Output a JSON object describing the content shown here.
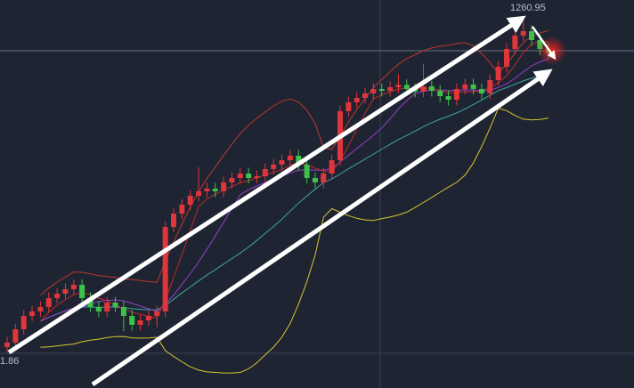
{
  "chart_data": {
    "type": "candlestick",
    "annotations": [
      "1260.95",
      "1.86"
    ],
    "ylim": [
      1206.62,
      1263.3
    ],
    "up_color": "#e0353a",
    "down_color": "#3cc24a",
    "open": [
      1212.6,
      1213.25,
      1215.2,
      1217.15,
      1217.8,
      1218.45,
      1219.75,
      1220.4,
      1221.05,
      1221.7,
      1219.75,
      1218.45,
      1217.8,
      1219.1,
      1218.45,
      1217.15,
      1215.85,
      1216.5,
      1217.15,
      1217.8,
      1230.15,
      1232.1,
      1233.4,
      1234.7,
      1235.35,
      1235.74,
      1235.35,
      1236.65,
      1237.3,
      1237.95,
      1237.3,
      1237.56,
      1238.6,
      1239.25,
      1239.9,
      1240.55,
      1239.25,
      1237.3,
      1236.65,
      1237.95,
      1239.9,
      1247.05,
      1248.35,
      1249.0,
      1249.65,
      1250.3,
      1250.04,
      1250.56,
      1250.9,
      1250.3,
      1249.91,
      1250.69,
      1250.04,
      1249.26,
      1248.74,
      1250.3,
      1250.95,
      1250.3,
      1249.65,
      1251.6,
      1253.55,
      1256.15,
      1258.1,
      1258.75,
      1257.45,
      1256.15
    ],
    "high": [
      1214.1,
      1216.0,
      1218.0,
      1218.6,
      1219.3,
      1220.6,
      1221.2,
      1221.9,
      1222.5,
      1222.5,
      1220.6,
      1219.3,
      1219.9,
      1219.9,
      1219.3,
      1218.0,
      1217.3,
      1218.0,
      1218.6,
      1231.0,
      1232.9,
      1234.2,
      1235.5,
      1238.9,
      1236.6,
      1236.6,
      1237.5,
      1238.1,
      1238.8,
      1238.8,
      1238.4,
      1239.4,
      1240.1,
      1240.7,
      1241.4,
      1241.4,
      1240.1,
      1238.1,
      1238.8,
      1240.7,
      1247.9,
      1249.2,
      1249.8,
      1250.5,
      1251.1,
      1251.1,
      1251.4,
      1252.5,
      1251.7,
      1251.1,
      1254.0,
      1251.5,
      1250.9,
      1250.1,
      1251.1,
      1251.8,
      1251.8,
      1251.1,
      1252.4,
      1254.4,
      1257.0,
      1258.9,
      1260.95,
      1259.6,
      1258.3,
      1257.0
    ],
    "low": [
      1211.86,
      1212.5,
      1214.4,
      1216.4,
      1217.0,
      1217.7,
      1219.0,
      1219.6,
      1220.3,
      1219.0,
      1217.7,
      1217.0,
      1217.0,
      1217.7,
      1214.9,
      1215.0,
      1215.0,
      1215.7,
      1215.5,
      1217.0,
      1229.4,
      1231.3,
      1232.6,
      1233.9,
      1234.5,
      1234.5,
      1234.5,
      1235.8,
      1236.5,
      1236.5,
      1236.5,
      1236.8,
      1237.8,
      1238.4,
      1239.1,
      1238.4,
      1236.5,
      1235.8,
      1235.8,
      1237.1,
      1239.1,
      1246.2,
      1247.5,
      1248.2,
      1248.8,
      1249.2,
      1249.2,
      1249.7,
      1249.5,
      1249.1,
      1249.1,
      1249.2,
      1248.4,
      1247.9,
      1247.9,
      1249.5,
      1249.5,
      1248.8,
      1248.8,
      1250.8,
      1252.7,
      1255.3,
      1257.3,
      1256.6,
      1255.3,
      1254.7
    ],
    "close": [
      1213.25,
      1215.2,
      1217.15,
      1217.8,
      1218.45,
      1219.75,
      1220.4,
      1221.05,
      1221.7,
      1219.75,
      1218.45,
      1217.8,
      1219.1,
      1218.45,
      1217.15,
      1215.85,
      1216.5,
      1217.15,
      1217.8,
      1230.15,
      1232.1,
      1233.4,
      1234.7,
      1235.35,
      1235.74,
      1235.35,
      1236.65,
      1237.3,
      1237.95,
      1237.3,
      1237.56,
      1238.6,
      1239.25,
      1239.9,
      1240.55,
      1239.25,
      1237.3,
      1236.65,
      1237.95,
      1239.9,
      1247.05,
      1248.35,
      1249.0,
      1249.65,
      1250.3,
      1250.04,
      1250.56,
      1250.9,
      1250.3,
      1249.91,
      1250.69,
      1250.04,
      1249.26,
      1248.74,
      1250.3,
      1250.95,
      1250.3,
      1249.65,
      1251.6,
      1253.55,
      1256.15,
      1258.1,
      1258.75,
      1257.45,
      1256.15,
      1255.5
    ]
  }
}
